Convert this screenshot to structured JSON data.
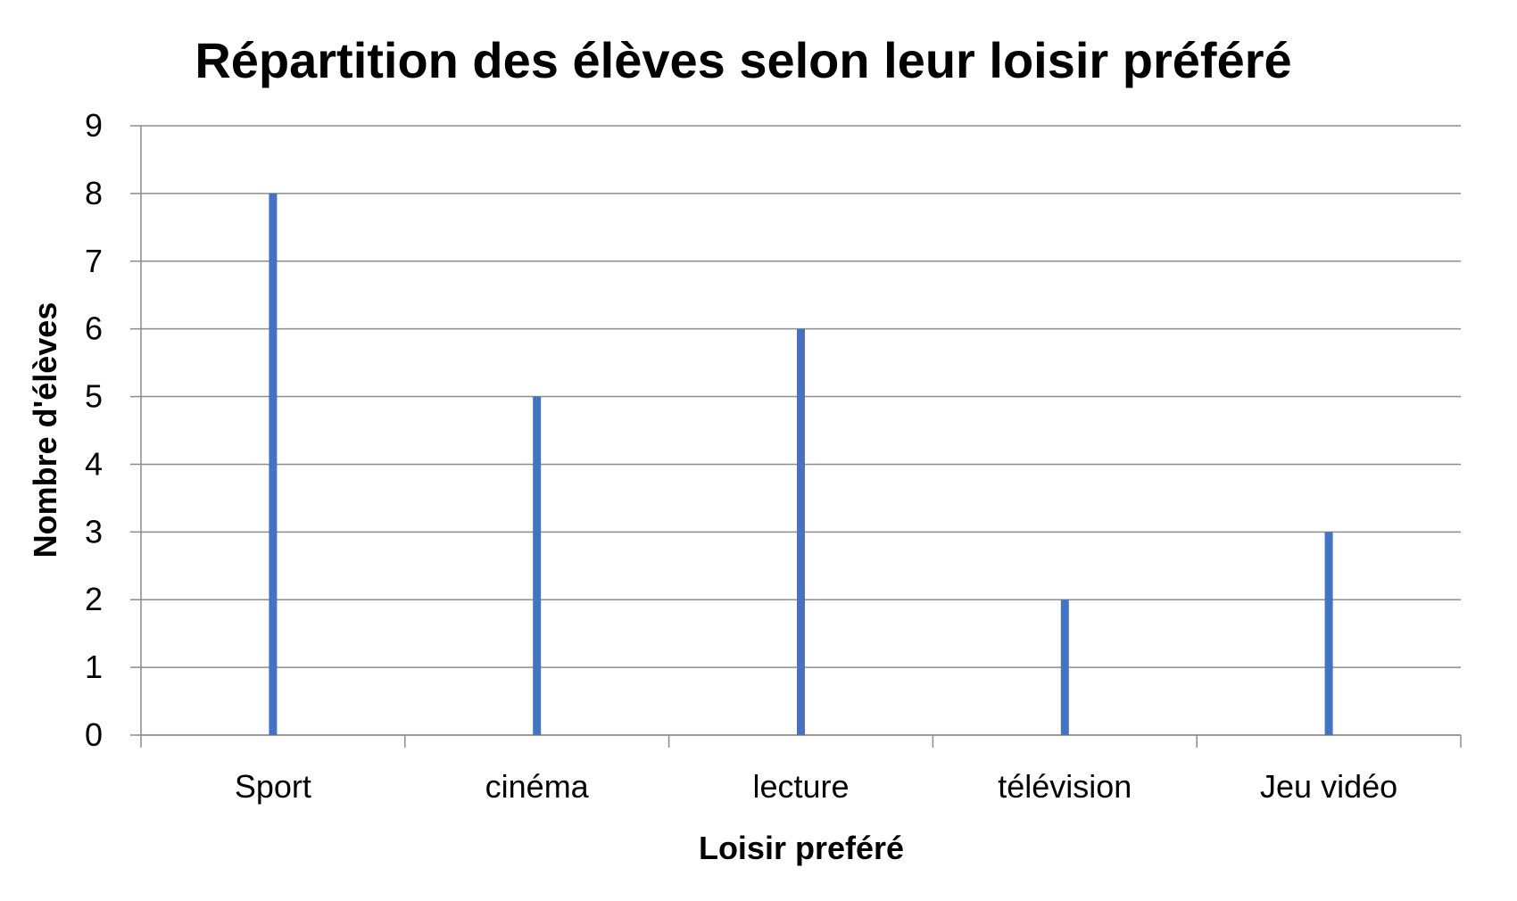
{
  "chart_data": {
    "type": "bar",
    "title": "Répartition des élèves selon leur loisir préféré",
    "xlabel": "Loisir preféré",
    "ylabel": "Nombre d'élèves",
    "categories": [
      "Sport",
      "cinéma",
      "lecture",
      "télévision",
      "Jeu vidéo"
    ],
    "values": [
      8,
      5,
      6,
      2,
      3
    ],
    "ylim": [
      0,
      9
    ],
    "yticks": [
      "0",
      "1",
      "2",
      "3",
      "4",
      "5",
      "6",
      "7",
      "8",
      "9"
    ],
    "grid": true,
    "bar_color": "#4472C4"
  }
}
